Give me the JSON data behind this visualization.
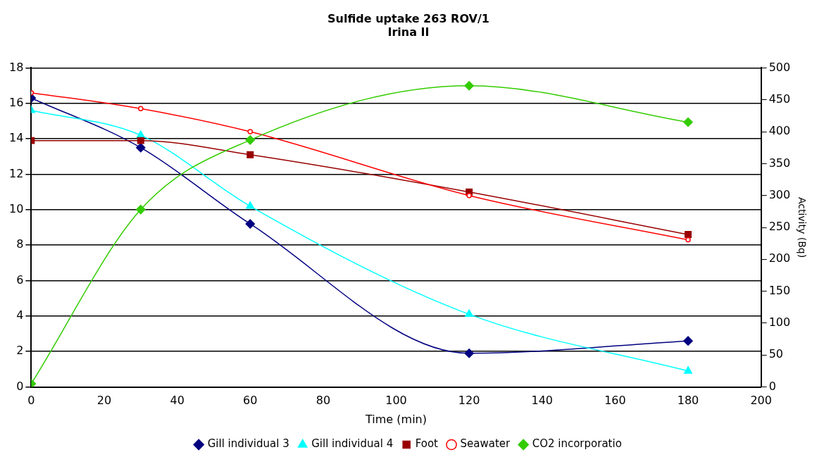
{
  "chart_data": {
    "type": "line",
    "title": "Sulfide uptake 263 ROV/1",
    "subtitle": "Irina II",
    "xlabel": "Time (min)",
    "y2label": "Activity (Bq)",
    "x": [
      0,
      30,
      60,
      120,
      180
    ],
    "series": [
      {
        "name": "Gill individual 3",
        "color": "#000080",
        "marker": "diamond",
        "values": [
          16.3,
          13.5,
          9.2,
          1.9,
          2.6
        ]
      },
      {
        "name": "Gill individual 4",
        "color": "#00ffff",
        "marker": "triangle",
        "values": [
          15.6,
          14.2,
          10.2,
          4.1,
          0.9
        ]
      },
      {
        "name": "Foot",
        "color": "#990000",
        "marker": "square",
        "values": [
          13.9,
          13.9,
          13.1,
          11.0,
          8.6
        ]
      },
      {
        "name": "Seawater",
        "color": "#ff0000",
        "marker": "circle",
        "values": [
          16.6,
          15.7,
          14.4,
          10.8,
          8.3
        ]
      },
      {
        "name": "CO2 incorporatio",
        "color": "#33cc00",
        "marker": "diamond",
        "axis": "y2",
        "values": [
          5,
          278,
          387,
          472,
          415
        ]
      }
    ],
    "xlim": [
      0,
      200
    ],
    "xticks": [
      0,
      20,
      40,
      60,
      80,
      100,
      120,
      140,
      160,
      180,
      200
    ],
    "ylim": [
      0,
      18
    ],
    "yticks": [
      0,
      2,
      4,
      6,
      8,
      10,
      12,
      14,
      16,
      18
    ],
    "y2lim": [
      0,
      500
    ],
    "y2ticks": [
      0,
      50,
      100,
      150,
      200,
      250,
      300,
      350,
      400,
      450,
      500
    ],
    "grid": "y",
    "legend": "bottom"
  }
}
